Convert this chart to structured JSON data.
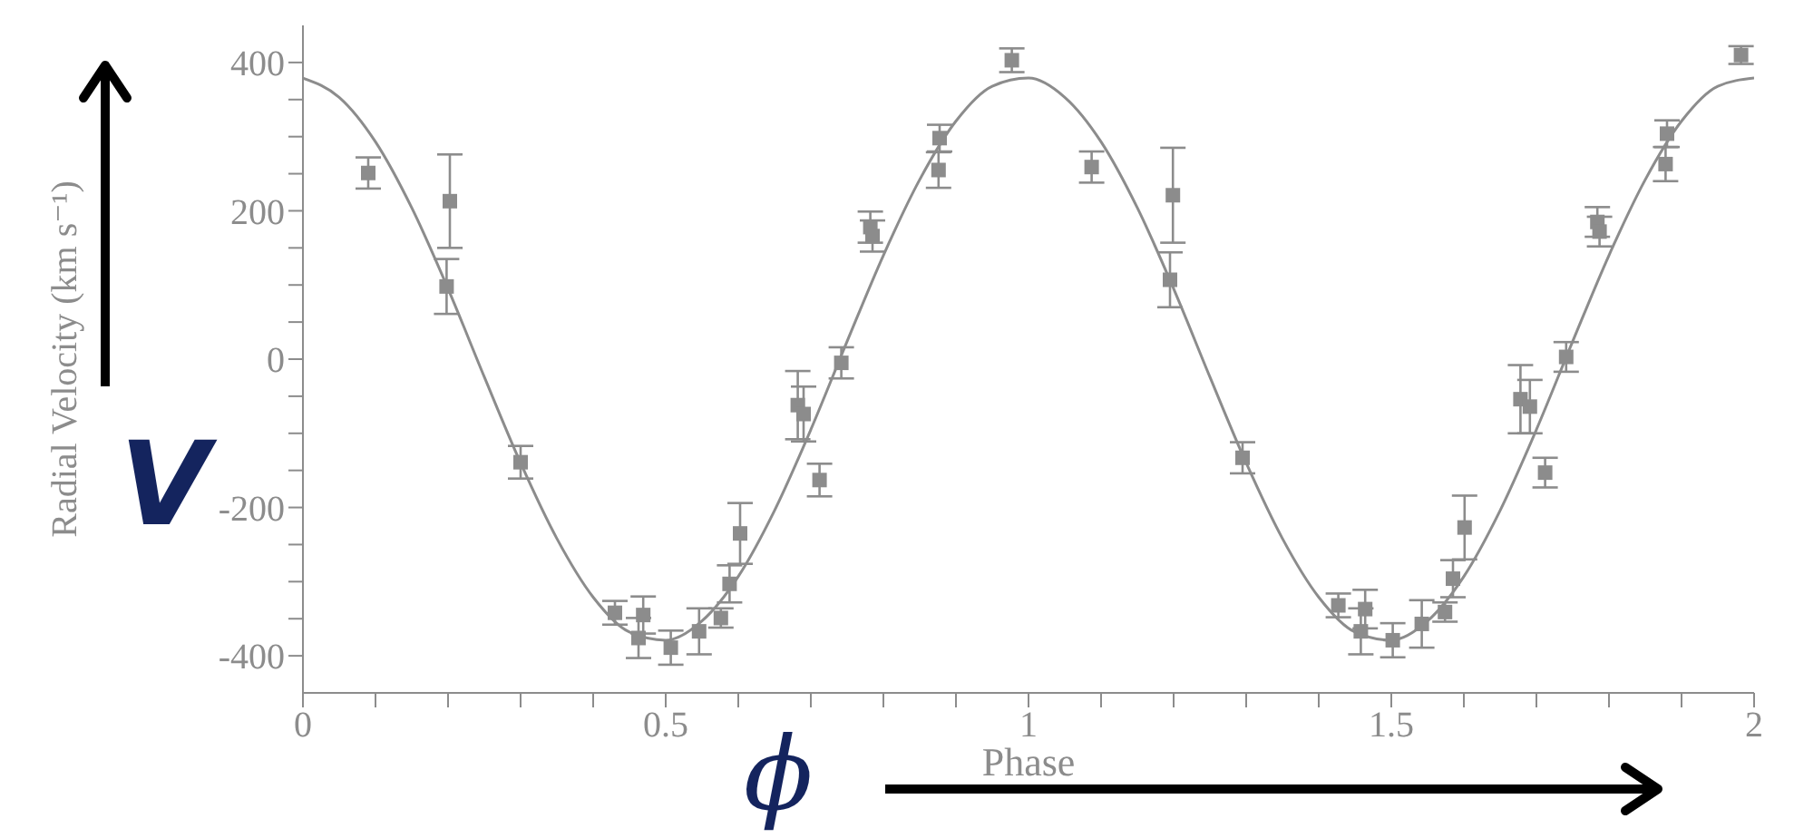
{
  "chart_data": {
    "type": "scatter",
    "xlabel": "Phase",
    "ylabel": "Radial Velocity (km s⁻¹)",
    "annotations": [
      "V",
      "ϕ"
    ],
    "xlim": [
      0,
      2
    ],
    "ylim": [
      -450,
      450
    ],
    "xticks": [
      0,
      {
        "value": 0.1,
        "label": null
      },
      {
        "value": 0.2,
        "label": null
      },
      {
        "value": 0.3,
        "label": null
      },
      {
        "value": 0.4,
        "label": null
      },
      0.5,
      {
        "value": 0.6,
        "label": null
      },
      {
        "value": 0.7,
        "label": null
      },
      {
        "value": 0.8,
        "label": null
      },
      {
        "value": 0.9,
        "label": null
      },
      1,
      {
        "value": 1.1,
        "label": null
      },
      {
        "value": 1.2,
        "label": null
      },
      {
        "value": 1.3,
        "label": null
      },
      {
        "value": 1.4,
        "label": null
      },
      1.5,
      {
        "value": 1.6,
        "label": null
      },
      {
        "value": 1.7,
        "label": null
      },
      {
        "value": 1.8,
        "label": null
      },
      {
        "value": 1.9,
        "label": null
      },
      2
    ],
    "yticks": [
      -400,
      {
        "value": -350,
        "label": null
      },
      {
        "value": -300,
        "label": null
      },
      {
        "value": -250,
        "label": null
      },
      -200,
      {
        "value": -150,
        "label": null
      },
      {
        "value": -100,
        "label": null
      },
      {
        "value": -50,
        "label": null
      },
      0,
      {
        "value": 50,
        "label": null
      },
      {
        "value": 100,
        "label": null
      },
      {
        "value": 150,
        "label": null
      },
      200,
      {
        "value": 250,
        "label": null
      },
      {
        "value": 300,
        "label": null
      },
      {
        "value": 350,
        "label": null
      },
      400
    ],
    "series": [
      {
        "type": "scatter",
        "color": "#8c8c8c",
        "marker": "square",
        "x": [
          0.09,
          0.2025,
          0.198,
          0.3,
          0.43,
          0.4625,
          0.469,
          0.507,
          0.546,
          0.576,
          0.588,
          0.6025,
          0.682,
          0.69,
          0.712,
          0.742,
          0.782,
          0.785,
          0.8775,
          0.876,
          0.977,
          1.087,
          1.199,
          1.195,
          1.295,
          1.427,
          1.458,
          1.464,
          1.502,
          1.542,
          1.574,
          1.585,
          1.601,
          1.678,
          1.691,
          1.712,
          1.741,
          1.784,
          1.787,
          1.88,
          1.878,
          1.982
        ],
        "values": [
          251,
          213,
          98,
          -139,
          -342,
          -376,
          -345,
          -389,
          -367,
          -349,
          -303,
          -235,
          -62,
          -74,
          -163,
          -5,
          178,
          166,
          298,
          255,
          403,
          259,
          221,
          107,
          -133,
          -332,
          -367,
          -337,
          -379,
          -357,
          -341,
          -296,
          -227,
          -54,
          -64,
          -153,
          3,
          185,
          172,
          304,
          263,
          410
        ],
        "errors": [
          21,
          63,
          37,
          22,
          16,
          27,
          25,
          23,
          31,
          13,
          25,
          41,
          46,
          37,
          22,
          21,
          21,
          21,
          18,
          24,
          16,
          21,
          64,
          37,
          21,
          16,
          31,
          26,
          23,
          32,
          13,
          25,
          43,
          46,
          36,
          20,
          20,
          20,
          20,
          18,
          23,
          12
        ]
      },
      {
        "type": "line",
        "color": "#8c8c8c",
        "marker": "none",
        "line_style": "solid",
        "x": [
          0,
          0.05,
          0.1,
          0.15,
          0.2,
          0.25,
          0.3,
          0.35,
          0.4,
          0.45,
          0.5,
          0.55,
          0.6,
          0.65,
          0.7,
          0.75,
          0.8,
          0.85,
          0.9,
          0.95,
          1,
          1.05,
          1.1,
          1.15,
          1.2,
          1.25,
          1.3,
          1.35,
          1.4,
          1.45,
          1.5,
          1.55,
          1.6,
          1.65,
          1.7,
          1.75,
          1.8,
          1.85,
          1.9,
          1.95,
          2
        ],
        "values": [
          379,
          353,
          293,
          204,
          95,
          -24,
          -140,
          -242,
          -321,
          -368,
          -379,
          -353,
          -293,
          -204,
          -95,
          24,
          140,
          242,
          321,
          368,
          379,
          353,
          293,
          204,
          95,
          -24,
          -140,
          -242,
          -321,
          -368,
          -379,
          -353,
          -293,
          -204,
          -95,
          24,
          140,
          242,
          321,
          368,
          379
        ]
      }
    ]
  }
}
